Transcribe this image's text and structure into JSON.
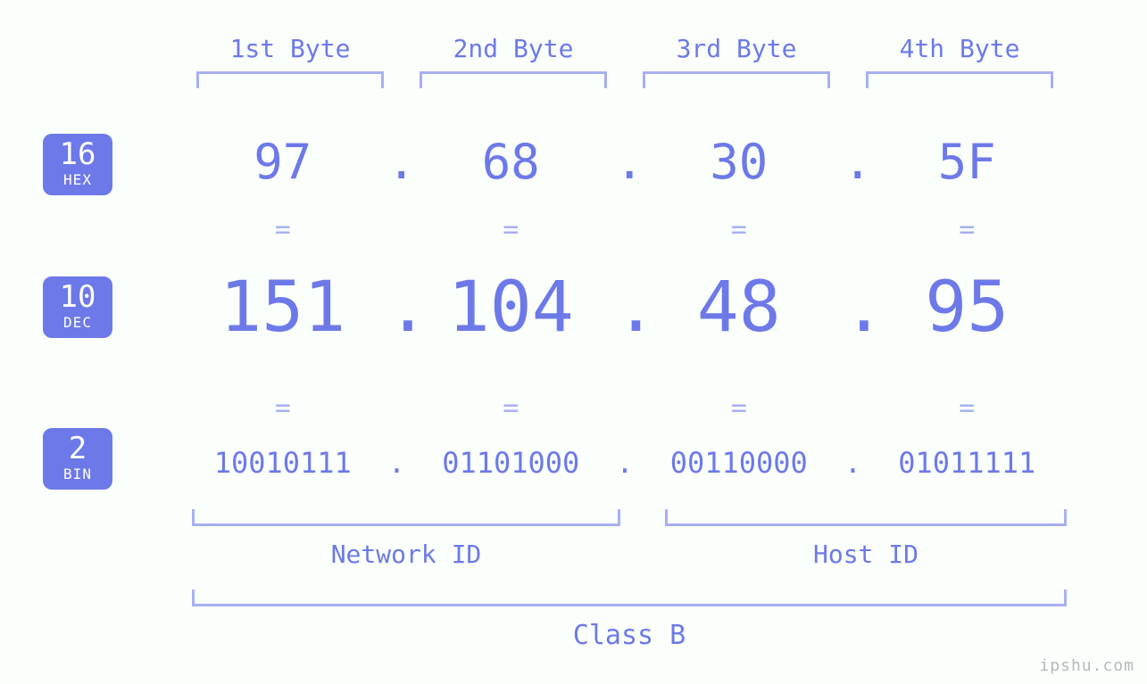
{
  "diagram": {
    "type": "infographic",
    "background_color": "#fafffc",
    "accent_color": "#6d79e8",
    "bracket_color": "#a7b0f1",
    "badge_bg": "#6d79e8",
    "badge_text_color": "#ffffff",
    "font_family": "monospace",
    "fontsize_byte_label": 28,
    "fontsize_hex": 54,
    "fontsize_dec": 78,
    "fontsize_bin": 32,
    "fontsize_eq": 30,
    "fontsize_under_label": 28,
    "fontsize_class_label": 30
  },
  "byte_labels": [
    "1st Byte",
    "2nd Byte",
    "3rd Byte",
    "4th Byte"
  ],
  "bases": {
    "hex": {
      "num": "16",
      "sys": "HEX"
    },
    "dec": {
      "num": "10",
      "sys": "DEC"
    },
    "bin": {
      "num": "2",
      "sys": "BIN"
    }
  },
  "bytes": {
    "hex": [
      "97",
      "68",
      "30",
      "5F"
    ],
    "dec": [
      "151",
      "104",
      "48",
      "95"
    ],
    "bin": [
      "10010111",
      "01101000",
      "00110000",
      "01011111"
    ]
  },
  "dot": ".",
  "equals": "=",
  "labels": {
    "network_id": "Network ID",
    "host_id": "Host ID",
    "class": "Class B"
  },
  "watermark": "ipshu.com"
}
